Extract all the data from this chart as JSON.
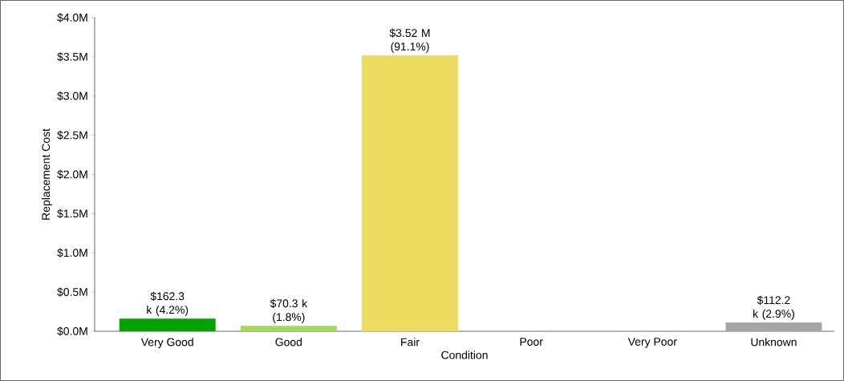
{
  "chart_data": {
    "type": "bar",
    "xlabel": "Condition",
    "ylabel": "Replacement Cost",
    "categories": [
      "Very Good",
      "Good",
      "Fair",
      "Poor",
      "Very Poor",
      "Unknown"
    ],
    "values": [
      162300,
      70300,
      3520000,
      0,
      0,
      112200
    ],
    "colors": [
      "#00a300",
      "#a6d85a",
      "#eddb62",
      "#f0a030",
      "#e03020",
      "#a6a6a6"
    ],
    "value_labels": [
      "$162.3 k (4.2%)",
      "$70.3 k (1.8%)",
      "$3.52 M (91.1%)",
      null,
      null,
      "$112.2 k (2.9%)"
    ],
    "ylim": [
      0,
      4000000
    ],
    "yticks": [
      {
        "value": 0,
        "label": "$0.0M"
      },
      {
        "value": 500000,
        "label": "$0.5M"
      },
      {
        "value": 1000000,
        "label": "$1.0M"
      },
      {
        "value": 1500000,
        "label": "$1.5M"
      },
      {
        "value": 2000000,
        "label": "$2.0M"
      },
      {
        "value": 2500000,
        "label": "$2.5M"
      },
      {
        "value": 3000000,
        "label": "$3.0M"
      },
      {
        "value": 3500000,
        "label": "$3.5M"
      },
      {
        "value": 4000000,
        "label": "$4.0M"
      }
    ],
    "grid": false
  }
}
